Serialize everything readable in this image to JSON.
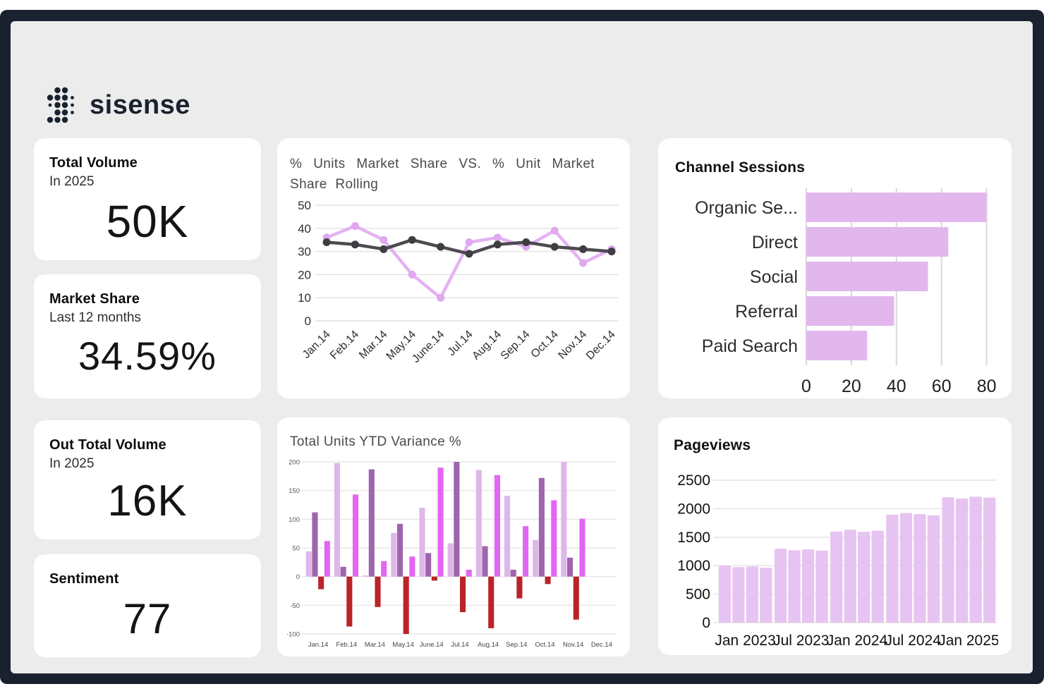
{
  "brand": {
    "name": "sisense"
  },
  "kpis": [
    {
      "title": "Total Volume",
      "subtitle": "In 2025",
      "value": "50K"
    },
    {
      "title": "Market Share",
      "subtitle": "Last 12 months",
      "value": "34.59%"
    },
    {
      "title": "Out Total Volume",
      "subtitle": "In 2025",
      "value": "16K"
    },
    {
      "title": "Sentiment",
      "subtitle": "",
      "value": "77"
    }
  ],
  "colors": {
    "frame_navy": "#19222e",
    "canvas_gray": "#ececec",
    "card_white": "#ffffff",
    "grid_gray": "#e2e2e2",
    "axis_text": "#2e2e2e"
  },
  "chart_data": [
    {
      "id": "market_share_lines",
      "type": "line",
      "title": "% Units Market Share VS. % Unit Market Share Rolling",
      "categories": [
        "Jan.14",
        "Feb.14",
        "Mar.14",
        "May.14",
        "June.14",
        "Jul.14",
        "Aug.14",
        "Sep.14",
        "Oct.14",
        "Nov.14",
        "Dec.14"
      ],
      "series": [
        {
          "name": "% Unit Market Share Rolling",
          "color": "#4d4b50",
          "marker": "#3f3d42",
          "values": [
            34,
            33,
            31,
            35,
            32,
            29,
            33,
            34,
            32,
            31,
            30
          ]
        },
        {
          "name": "% Units Market Share",
          "color": "#e4b2f2",
          "marker": "#dfa8ef",
          "values": [
            36,
            41,
            35,
            20,
            10,
            34,
            36,
            32,
            39,
            25,
            31
          ]
        }
      ],
      "ylim": [
        0,
        50
      ],
      "yticks": [
        0,
        10,
        20,
        30,
        40,
        50
      ],
      "grid": true,
      "legend": "none"
    },
    {
      "id": "channel_sessions",
      "type": "bar",
      "orientation": "horizontal",
      "title": "Channel Sessions",
      "categories": [
        "Organic Se...",
        "Direct",
        "Social",
        "Referral",
        "Paid Search"
      ],
      "values": [
        80,
        63,
        54,
        39,
        27
      ],
      "color": "#e2b7ee",
      "xticks": [
        0,
        20,
        40,
        60,
        80
      ],
      "xlim": [
        0,
        82
      ],
      "grid": true,
      "legend": "none"
    },
    {
      "id": "ytd_variance",
      "type": "bar",
      "orientation": "vertical-grouped",
      "title": "Total Units YTD Variance %",
      "categories": [
        "Jan.14",
        "Feb.14",
        "Mar.14",
        "May.14",
        "June.14",
        "Jul.14",
        "Aug.14",
        "Sep.14",
        "Oct.14",
        "Nov.14",
        "Dec.14"
      ],
      "series": [
        {
          "name": "series-1",
          "color": "#deb7ea",
          "values": [
            44,
            198,
            2,
            76,
            120,
            58,
            186,
            141,
            64,
            200,
            0
          ]
        },
        {
          "name": "series-2",
          "color": "#9d65ac",
          "values": [
            112,
            17,
            187,
            92,
            41,
            200,
            53,
            12,
            172,
            33,
            0
          ]
        },
        {
          "name": "series-3",
          "color": "#bb2328",
          "values": [
            -22,
            -87,
            -53,
            -100,
            -7,
            -62,
            -90,
            -38,
            -13,
            -75,
            0
          ]
        },
        {
          "name": "series-4",
          "color": "#e366f2",
          "values": [
            62,
            143,
            27,
            35,
            190,
            12,
            177,
            88,
            133,
            101,
            0
          ]
        }
      ],
      "ylim": [
        -100,
        200
      ],
      "yticks": [
        200,
        150,
        100,
        50,
        0,
        -50,
        -100
      ],
      "grid": true,
      "legend": "none"
    },
    {
      "id": "pageviews",
      "type": "bar",
      "orientation": "vertical-clustered",
      "title": "Pageviews",
      "categories": [
        "Jan 2023",
        "Jul 2023",
        "Jan 2024",
        "Jul 2024",
        "Jan 2025"
      ],
      "cluster_size": 4,
      "values": [
        1000,
        975,
        985,
        965,
        1300,
        1270,
        1285,
        1265,
        1600,
        1630,
        1595,
        1615,
        1895,
        1925,
        1905,
        1885,
        2200,
        2180,
        2210,
        2195
      ],
      "color": "#e7c3f1",
      "ylim": [
        0,
        2500
      ],
      "yticks": [
        0,
        500,
        1000,
        1500,
        2000,
        2500
      ],
      "grid": true,
      "legend": "none"
    }
  ]
}
